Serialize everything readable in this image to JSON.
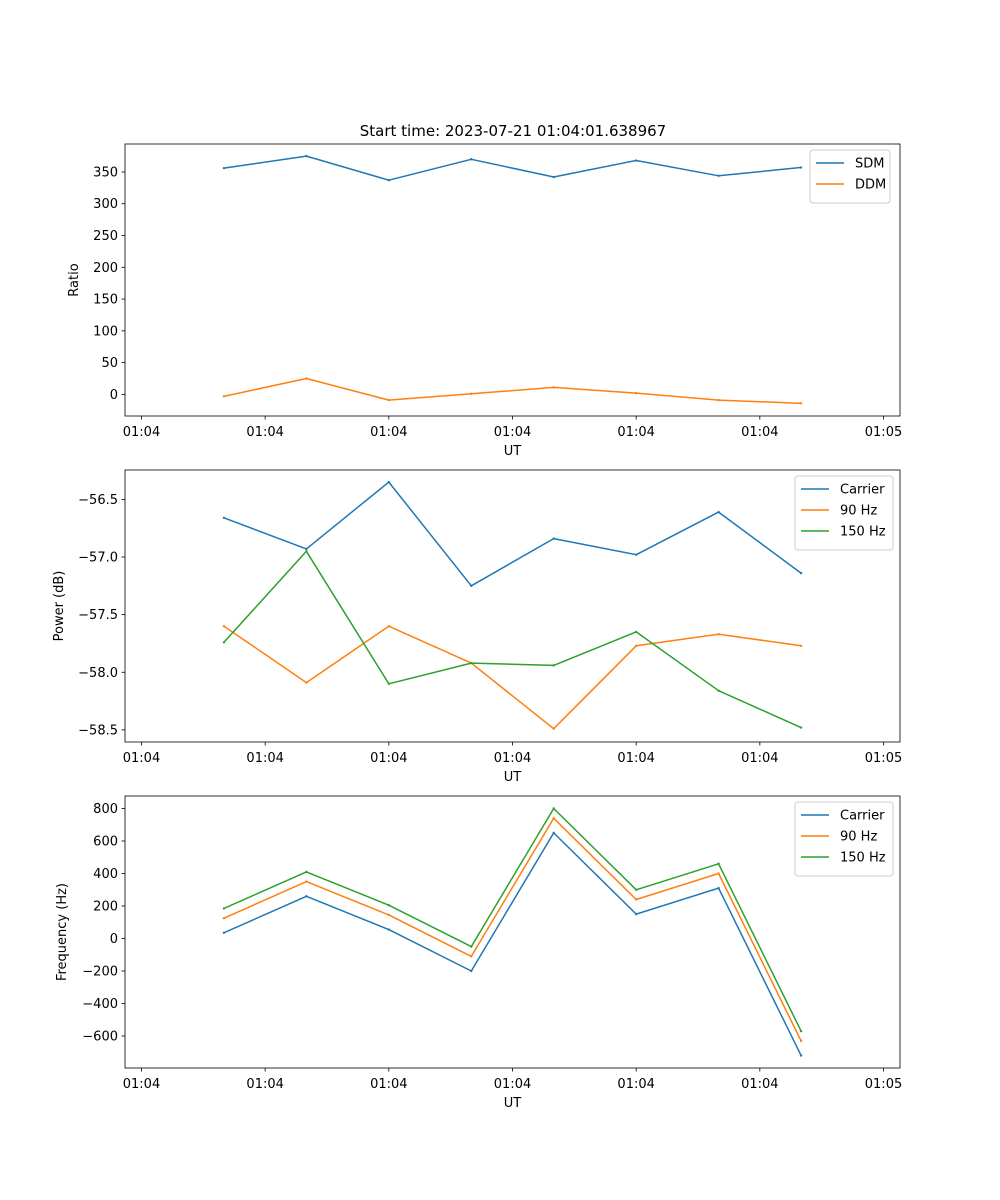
{
  "colors": {
    "blue": "#1f77b4",
    "orange": "#ff7f0e",
    "green": "#2ca02c",
    "axis": "#000000",
    "background": "#ffffff"
  },
  "chart_data": [
    {
      "type": "line",
      "title": "Start time: 2023-07-21 01:04:01.638967",
      "xlabel": "UT",
      "ylabel": "Ratio",
      "x": [
        1,
        2,
        3,
        4,
        5,
        6,
        7,
        8
      ],
      "xlim": [
        -0.2,
        9.2
      ],
      "xtick_positions": [
        0,
        1.5,
        3,
        4.5,
        6,
        7.5,
        9
      ],
      "xtick_labels": [
        "01:04",
        "01:04",
        "01:04",
        "01:04",
        "01:04",
        "01:04",
        "01:05"
      ],
      "ylim": [
        -34,
        394
      ],
      "yticks": [
        0,
        50,
        100,
        150,
        200,
        250,
        300,
        350
      ],
      "grid": false,
      "legend_loc": "upper right",
      "series": [
        {
          "name": "SDM",
          "color": "#1f77b4",
          "values": [
            356,
            375,
            337,
            370,
            342,
            368,
            344,
            357
          ]
        },
        {
          "name": "DDM",
          "color": "#ff7f0e",
          "values": [
            -3,
            25,
            -9,
            1,
            11,
            2,
            -9,
            -14
          ]
        }
      ]
    },
    {
      "type": "line",
      "title": "",
      "xlabel": "UT",
      "ylabel": "Power (dB)",
      "x": [
        1,
        2,
        3,
        4,
        5,
        6,
        7,
        8
      ],
      "xlim": [
        -0.2,
        9.2
      ],
      "xtick_positions": [
        0,
        1.5,
        3,
        4.5,
        6,
        7.5,
        9
      ],
      "xtick_labels": [
        "01:04",
        "01:04",
        "01:04",
        "01:04",
        "01:04",
        "01:04",
        "01:05"
      ],
      "ylim": [
        -58.605,
        -56.245
      ],
      "yticks": [
        -58.5,
        -58.0,
        -57.5,
        -57.0,
        -56.5
      ],
      "ytick_labels": [
        "−58.5",
        "−58.0",
        "−57.5",
        "−57.0",
        "−56.5"
      ],
      "grid": false,
      "legend_loc": "upper right",
      "series": [
        {
          "name": "Carrier",
          "color": "#1f77b4",
          "values": [
            -56.66,
            -56.93,
            -56.35,
            -57.25,
            -56.84,
            -56.98,
            -56.61,
            -57.14
          ]
        },
        {
          "name": "90 Hz",
          "color": "#ff7f0e",
          "values": [
            -57.6,
            -58.09,
            -57.6,
            -57.92,
            -58.49,
            -57.77,
            -57.67,
            -57.77
          ]
        },
        {
          "name": "150 Hz",
          "color": "#2ca02c",
          "values": [
            -57.74,
            -56.95,
            -58.1,
            -57.92,
            -57.94,
            -57.65,
            -58.16,
            -58.48
          ]
        }
      ]
    },
    {
      "type": "line",
      "title": "",
      "xlabel": "UT",
      "ylabel": "Frequency (Hz)",
      "x": [
        1,
        2,
        3,
        4,
        5,
        6,
        7,
        8
      ],
      "xlim": [
        -0.2,
        9.2
      ],
      "xtick_positions": [
        0,
        1.5,
        3,
        4.5,
        6,
        7.5,
        9
      ],
      "xtick_labels": [
        "01:04",
        "01:04",
        "01:04",
        "01:04",
        "01:04",
        "01:04",
        "01:05"
      ],
      "ylim": [
        -797,
        877
      ],
      "yticks": [
        -600,
        -400,
        -200,
        0,
        200,
        400,
        600,
        800
      ],
      "ytick_labels": [
        "−600",
        "−400",
        "−200",
        "0",
        "200",
        "400",
        "600",
        "800"
      ],
      "grid": false,
      "legend_loc": "upper right",
      "series": [
        {
          "name": "Carrier",
          "color": "#1f77b4",
          "values": [
            35,
            260,
            55,
            -200,
            650,
            150,
            310,
            -720
          ]
        },
        {
          "name": "90 Hz",
          "color": "#ff7f0e",
          "values": [
            125,
            350,
            145,
            -110,
            740,
            240,
            400,
            -630
          ]
        },
        {
          "name": "150 Hz",
          "color": "#2ca02c",
          "values": [
            185,
            410,
            205,
            -50,
            800,
            300,
            460,
            -570
          ]
        }
      ]
    }
  ]
}
